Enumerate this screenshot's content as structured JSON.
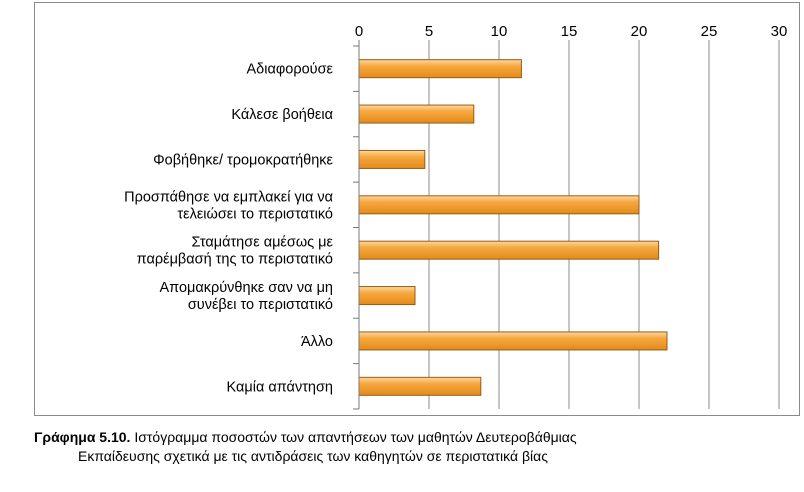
{
  "chart_data": {
    "type": "bar",
    "orientation": "horizontal",
    "categories": [
      [
        "Αδιαφορούσε"
      ],
      [
        "Κάλεσε βοήθεια"
      ],
      [
        "Φοβήθηκε/ τρομοκρατήθηκε"
      ],
      [
        "Προσπάθησε να εμπλακεί για να",
        "τελειώσει το περιστατικό"
      ],
      [
        "Σταμάτησε αμέσως με",
        "παρέμβασή της το περιστατικό"
      ],
      [
        "Απομακρύνθηκε σαν να μη",
        "συνέβει το περιστατικό"
      ],
      [
        "Άλλο"
      ],
      [
        "Καμία απάντηση"
      ]
    ],
    "values": [
      11.6,
      8.2,
      4.7,
      20.0,
      21.4,
      4.0,
      22.0,
      8.7
    ],
    "xlim": [
      0,
      30
    ],
    "xticks": [
      0,
      5,
      10,
      15,
      20,
      25,
      30
    ],
    "axis_position": "top",
    "grid": true,
    "legend": "none",
    "bar_color": "#f4a032",
    "bar_edge_color": "#9c5a10"
  },
  "caption": {
    "label": "Γράφημα 5.10.",
    "line1": " Ιστόγραμμα ποσοστών των απαντήσεων των μαθητών Δευτεροβάθμιας",
    "line2": "Εκπαίδευσης σχετικά με τις αντιδράσεις των καθηγητών σε περιστατικά βίας"
  }
}
